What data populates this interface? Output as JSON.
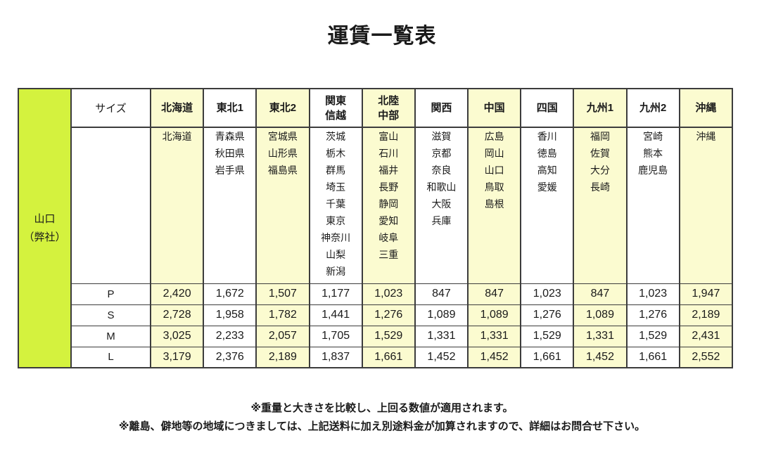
{
  "title": "運賃一覧表",
  "colors": {
    "origin_bg": "#D4F23E",
    "highlight_bg": "#FBFBD0",
    "border": "#3C3C3C",
    "text": "#1A1A1A"
  },
  "table": {
    "origin": {
      "lines": [
        "山口",
        "（弊社）"
      ]
    },
    "size_header": "サイズ",
    "regions": [
      {
        "name": "北海道",
        "name_lines": [
          "北海道"
        ],
        "prefectures": [
          "北海道"
        ],
        "highlight": true
      },
      {
        "name": "東北1",
        "name_lines": [
          "東北1"
        ],
        "prefectures": [
          "青森県",
          "秋田県",
          "岩手県"
        ],
        "highlight": false
      },
      {
        "name": "東北2",
        "name_lines": [
          "東北2"
        ],
        "prefectures": [
          "宮城県",
          "山形県",
          "福島県"
        ],
        "highlight": true
      },
      {
        "name": "関東信越",
        "name_lines": [
          "関東",
          "信越"
        ],
        "prefectures": [
          "茨城",
          "栃木",
          "群馬",
          "埼玉",
          "千葉",
          "東京",
          "神奈川",
          "山梨",
          "新潟"
        ],
        "highlight": false
      },
      {
        "name": "北陸中部",
        "name_lines": [
          "北陸",
          "中部"
        ],
        "prefectures": [
          "富山",
          "石川",
          "福井",
          "長野",
          "静岡",
          "愛知",
          "岐阜",
          "三重"
        ],
        "highlight": true
      },
      {
        "name": "関西",
        "name_lines": [
          "関西"
        ],
        "prefectures": [
          "滋賀",
          "京都",
          "奈良",
          "和歌山",
          "大阪",
          "兵庫"
        ],
        "highlight": false
      },
      {
        "name": "中国",
        "name_lines": [
          "中国"
        ],
        "prefectures": [
          "広島",
          "岡山",
          "山口",
          "鳥取",
          "島根"
        ],
        "highlight": true
      },
      {
        "name": "四国",
        "name_lines": [
          "四国"
        ],
        "prefectures": [
          "香川",
          "徳島",
          "高知",
          "愛媛"
        ],
        "highlight": false
      },
      {
        "name": "九州1",
        "name_lines": [
          "九州1"
        ],
        "prefectures": [
          "福岡",
          "佐賀",
          "大分",
          "長崎"
        ],
        "highlight": true
      },
      {
        "name": "九州2",
        "name_lines": [
          "九州2"
        ],
        "prefectures": [
          "宮崎",
          "熊本",
          "鹿児島"
        ],
        "highlight": false
      },
      {
        "name": "沖縄",
        "name_lines": [
          "沖縄"
        ],
        "prefectures": [
          "沖縄"
        ],
        "highlight": true
      }
    ],
    "size_rows": [
      {
        "size": "P",
        "fares": [
          "2,420",
          "1,672",
          "1,507",
          "1,177",
          "1,023",
          "847",
          "847",
          "1,023",
          "847",
          "1,023",
          "1,947"
        ]
      },
      {
        "size": "S",
        "fares": [
          "2,728",
          "1,958",
          "1,782",
          "1,441",
          "1,276",
          "1,089",
          "1,089",
          "1,276",
          "1,089",
          "1,276",
          "2,189"
        ]
      },
      {
        "size": "M",
        "fares": [
          "3,025",
          "2,233",
          "2,057",
          "1,705",
          "1,529",
          "1,331",
          "1,331",
          "1,529",
          "1,331",
          "1,529",
          "2,431"
        ]
      },
      {
        "size": "L",
        "fares": [
          "3,179",
          "2,376",
          "2,189",
          "1,837",
          "1,661",
          "1,452",
          "1,452",
          "1,661",
          "1,452",
          "1,661",
          "2,552"
        ]
      }
    ]
  },
  "notes": [
    "※重量と大きさを比較し、上回る数値が適用されます。",
    "※離島、僻地等の地域につきましては、上記送料に加え別途料金が加算されますので、詳細はお問合せ下さい。"
  ]
}
